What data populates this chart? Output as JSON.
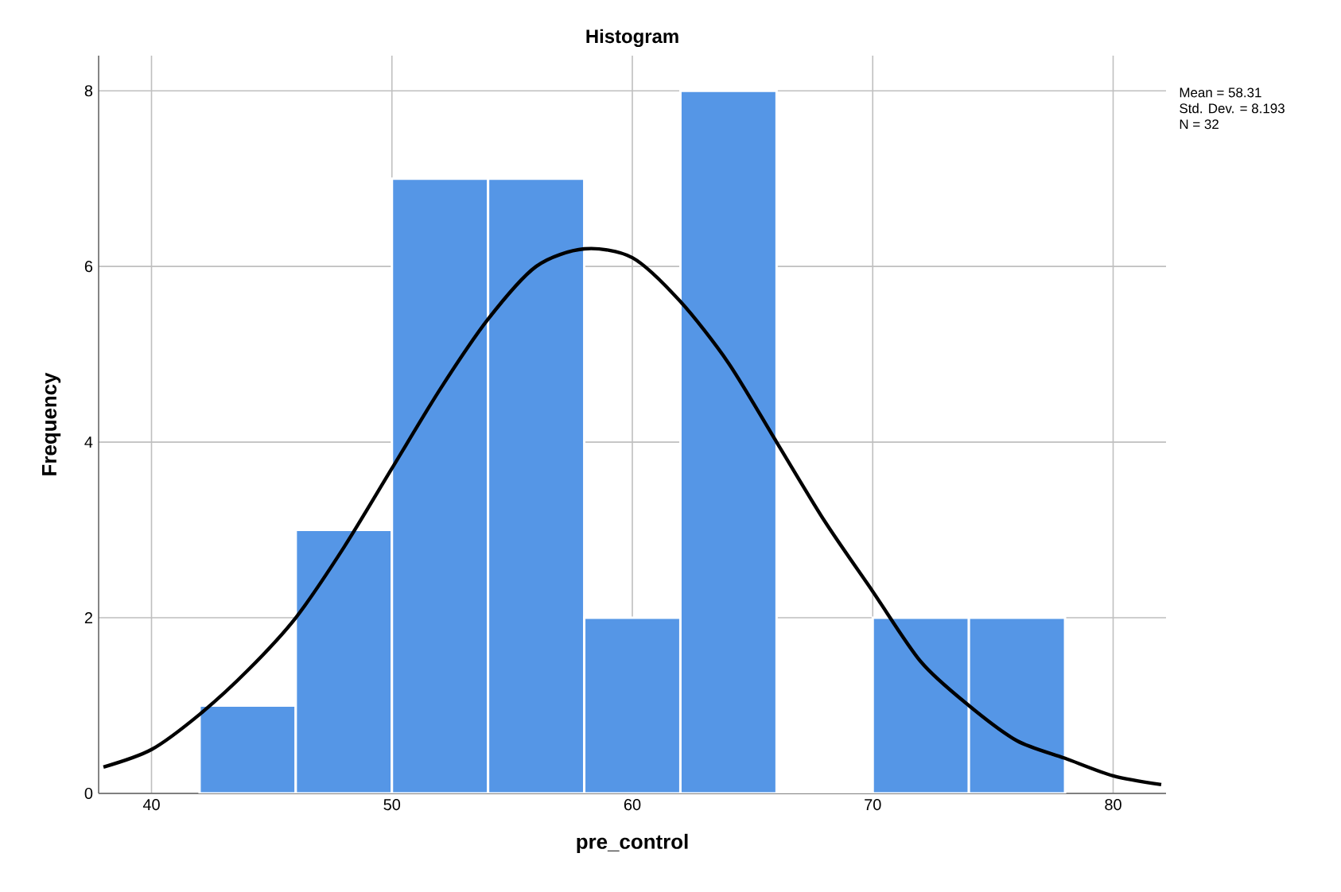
{
  "chart_data": {
    "type": "histogram",
    "title": "Histogram",
    "xlabel": "pre_control",
    "ylabel": "Frequency",
    "bins": [
      42,
      46,
      50,
      54,
      58,
      62,
      66,
      70,
      74,
      78
    ],
    "values": [
      1,
      3,
      7,
      7,
      2,
      8,
      0,
      2,
      2
    ],
    "color": "#5596e6",
    "series": [
      {
        "type": "line",
        "color": "#000000",
        "x": [
          38,
          40,
          42,
          44,
          46,
          48,
          50,
          52,
          54,
          56,
          58,
          60,
          62,
          64,
          66,
          68,
          70,
          72,
          74,
          76,
          78,
          80,
          82
        ],
        "values": [
          0.3,
          0.5,
          0.9,
          1.4,
          2.0,
          2.8,
          3.7,
          4.6,
          5.4,
          6.0,
          6.2,
          6.1,
          5.6,
          4.9,
          4.0,
          3.1,
          2.3,
          1.5,
          1.0,
          0.6,
          0.4,
          0.2,
          0.1
        ]
      }
    ],
    "xlim": [
      37.8,
      82.2
    ],
    "ylim": [
      0,
      8.4
    ],
    "xticks": [
      40,
      50,
      60,
      70,
      80
    ],
    "yticks": [
      0,
      2,
      4,
      6,
      8
    ],
    "grid": true,
    "annotations": [
      "Mean = 58.31",
      "Std. Dev. = 8.193",
      "N = 32"
    ]
  }
}
